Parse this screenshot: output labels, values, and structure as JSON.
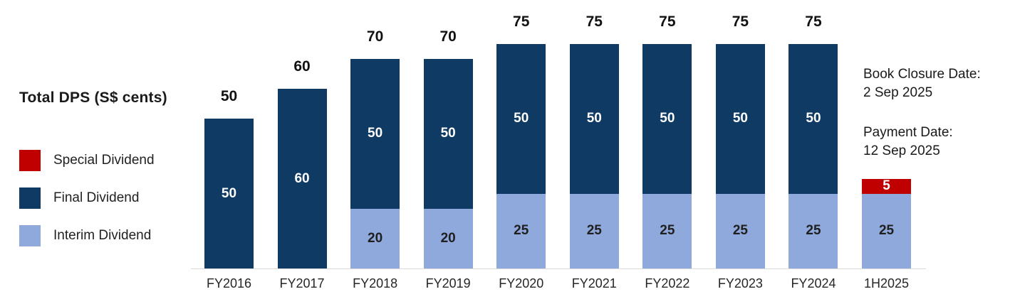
{
  "title": "Total DPS (S$ cents)",
  "legend": [
    {
      "label": "Special Dividend",
      "color": "#c00000"
    },
    {
      "label": "Final Dividend",
      "color": "#0e3a64"
    },
    {
      "label": "Interim Dividend",
      "color": "#8fa9dc"
    }
  ],
  "notes": {
    "book_closure_label": "Book Closure Date:",
    "book_closure_date": "2 Sep 2025",
    "payment_label": "Payment Date:",
    "payment_date": "12 Sep 2025"
  },
  "chart_data": {
    "type": "bar",
    "stacked": true,
    "title": "Total DPS (S$ cents)",
    "categories": [
      "FY2016",
      "FY2017",
      "FY2018",
      "FY2019",
      "FY2020",
      "FY2021",
      "FY2022",
      "FY2023",
      "FY2024",
      "1H2025"
    ],
    "series": [
      {
        "name": "Interim Dividend",
        "color": "#8fa9dc",
        "label_color": "#1f1f1f",
        "values": [
          0,
          0,
          20,
          20,
          25,
          25,
          25,
          25,
          25,
          25
        ]
      },
      {
        "name": "Final Dividend",
        "color": "#0e3a64",
        "label_color": "#ffffff",
        "values": [
          50,
          60,
          50,
          50,
          50,
          50,
          50,
          50,
          50,
          0
        ]
      },
      {
        "name": "Special Dividend",
        "color": "#c00000",
        "label_color": "#ffffff",
        "values": [
          0,
          0,
          0,
          0,
          0,
          0,
          0,
          0,
          0,
          5
        ]
      }
    ],
    "totals": [
      50,
      60,
      70,
      70,
      75,
      75,
      75,
      75,
      75,
      30
    ],
    "total_labels": [
      "50",
      "60",
      "70",
      "70",
      "75",
      "75",
      "75",
      "75",
      "75",
      ""
    ],
    "ylim": [
      0,
      75
    ],
    "grid": false,
    "legend_position": "left",
    "annotations": [
      "Book Closure Date: 2 Sep 2025",
      "Payment Date: 12 Sep 2025"
    ]
  }
}
